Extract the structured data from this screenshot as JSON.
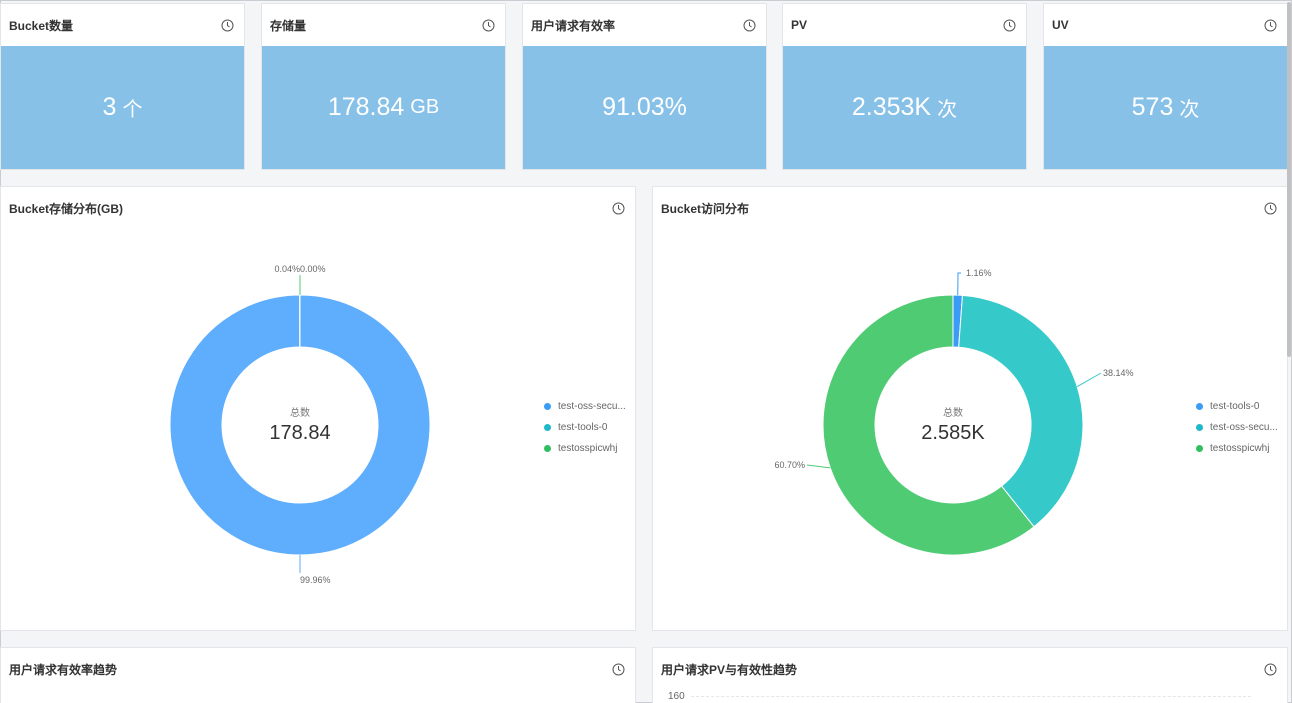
{
  "kpis": [
    {
      "title": "Bucket数量",
      "value": "3",
      "unit": "个"
    },
    {
      "title": "存储量",
      "value": "178.84",
      "unit": "GB"
    },
    {
      "title": "用户请求有效率",
      "value": "91.03%",
      "unit": ""
    },
    {
      "title": "PV",
      "value": "2.353K",
      "unit": "次"
    },
    {
      "title": "UV",
      "value": "573",
      "unit": "次"
    }
  ],
  "storage_chart": {
    "title": "Bucket存储分布(GB)",
    "center_label": "总数",
    "center_value": "178.84",
    "legend": [
      "test-oss-secu...",
      "test-tools-0",
      "testosspicwhj"
    ],
    "top_labels": "0.04%0.00%",
    "bottom_label": "99.96%"
  },
  "access_chart": {
    "title": "Bucket访问分布",
    "center_label": "总数",
    "center_value": "2.585K",
    "legend": [
      "test-tools-0",
      "test-oss-secu...",
      "testosspicwhj"
    ],
    "labels": [
      "1.16%",
      "38.14%",
      "60.70%"
    ]
  },
  "trend_cards": [
    {
      "title": "用户请求有效率趋势"
    },
    {
      "title": "用户请求PV与有效性趋势",
      "y_tick": "160"
    }
  ],
  "chart_data": [
    {
      "type": "pie",
      "title": "Bucket存储分布(GB)",
      "categories": [
        "test-oss-secu...",
        "test-tools-0",
        "testosspicwhj"
      ],
      "values": [
        99.96,
        0.04,
        0.0
      ],
      "unit": "%",
      "colors": [
        "#5eaefd",
        "#36c9c9",
        "#4fcb74"
      ]
    },
    {
      "type": "pie",
      "title": "Bucket访问分布",
      "categories": [
        "test-tools-0",
        "test-oss-secu...",
        "testosspicwhj"
      ],
      "values": [
        1.16,
        38.14,
        60.7
      ],
      "unit": "%",
      "colors": [
        "#3a9cf4",
        "#36c9c9",
        "#4fcb74"
      ]
    }
  ]
}
